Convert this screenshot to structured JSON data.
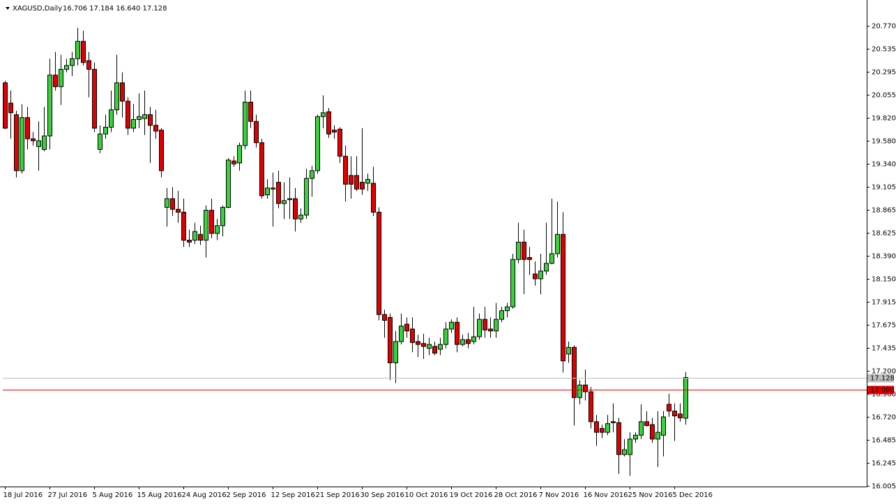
{
  "chart_data": {
    "type": "candlestick",
    "title": "XAGUSD,Daily",
    "ohlc_header": "16.706 17.184 16.640 17.128",
    "up_color": "#3ad13a",
    "down_color": "#e00000",
    "categories": [
      "18 Jul 2016",
      null,
      null,
      null,
      null,
      null,
      null,
      null,
      "27 Jul 2016",
      null,
      null,
      null,
      null,
      null,
      null,
      null,
      "5 Aug 2016",
      null,
      null,
      null,
      null,
      null,
      null,
      null,
      "15 Aug 2016",
      null,
      null,
      null,
      null,
      null,
      null,
      null,
      "24 Aug 2016",
      null,
      null,
      null,
      null,
      null,
      null,
      null,
      "2 Sep 2016",
      null,
      null,
      null,
      null,
      null,
      null,
      null,
      "12 Sep 2016",
      null,
      null,
      null,
      null,
      null,
      null,
      null,
      "21 Sep 2016",
      null,
      null,
      null,
      null,
      null,
      null,
      null,
      "30 Sep 2016",
      null,
      null,
      null,
      null,
      null,
      null,
      null,
      "10 Oct 2016",
      null,
      null,
      null,
      null,
      null,
      null,
      null,
      "19 Oct 2016",
      null,
      null,
      null,
      null,
      null,
      null,
      null,
      "28 Oct 2016",
      null,
      null,
      null,
      null,
      null,
      null,
      null,
      "7 Nov 2016",
      null,
      null,
      null,
      null,
      null,
      null,
      null,
      "16 Nov 2016",
      null,
      null,
      null,
      null,
      null,
      null,
      null,
      "25 Nov 2016",
      null,
      null,
      null,
      null,
      null,
      null,
      null,
      "5 Dec 2016",
      null,
      null
    ],
    "open": [
      20.18,
      19.97,
      19.85,
      19.27,
      19.82,
      19.6,
      19.52,
      19.49,
      19.63,
      20.26,
      20.14,
      20.32,
      20.36,
      20.43,
      20.61,
      20.41,
      20.32,
      19.49,
      19.65,
      19.72,
      19.9,
      20.18,
      19.99,
      19.71,
      19.8,
      19.81,
      19.85,
      19.74,
      19.69,
      18.89,
      18.98,
      18.87,
      18.84,
      18.55,
      18.55,
      18.61,
      18.55,
      18.86,
      18.62,
      18.7,
      18.89,
      19.37,
      19.35,
      19.53,
      19.98,
      19.78,
      19.56,
      19.02,
      19.09,
      19.15,
      18.93,
      18.97,
      18.98,
      18.77,
      18.81,
      19.19,
      19.27,
      19.83,
      19.88,
      19.69,
      19.7,
      19.42,
      19.22,
      19.22,
      19.15,
      19.14,
      19.14,
      18.84,
      17.78,
      17.75,
      17.28,
      17.5,
      17.68,
      17.63,
      17.5,
      17.48,
      17.43,
      17.45,
      17.42,
      17.47,
      17.63,
      17.7,
      17.47,
      17.52,
      17.5,
      17.55,
      17.73,
      17.63,
      17.61,
      17.73,
      17.82,
      17.86,
      18.35,
      18.53,
      18.37,
      18.2,
      18.15,
      18.23,
      18.31,
      18.41,
      18.61,
      17.37,
      17.44,
      16.92,
      17.05,
      16.98,
      16.67,
      16.6,
      16.56,
      16.67,
      16.66,
      16.33,
      16.33,
      16.49,
      16.53,
      16.67,
      16.64,
      16.49,
      16.53,
      16.85,
      16.78,
      16.75,
      16.706
    ],
    "high": [
      20.2,
      20.1,
      19.89,
      19.96,
      19.93,
      19.67,
      19.78,
      19.93,
      20.43,
      20.5,
      20.47,
      20.43,
      20.5,
      20.75,
      20.72,
      20.5,
      20.39,
      19.74,
      19.85,
      20.1,
      20.47,
      20.29,
      20.03,
      19.96,
      20.07,
      20.1,
      19.93,
      19.9,
      19.71,
      19.09,
      19.1,
      19.06,
      18.98,
      18.66,
      18.73,
      18.7,
      18.91,
      18.98,
      18.77,
      18.91,
      19.4,
      19.42,
      19.56,
      20.1,
      20.1,
      19.85,
      19.6,
      19.18,
      19.25,
      19.27,
      19.15,
      19.2,
      19.09,
      18.88,
      19.29,
      19.32,
      19.85,
      20.05,
      19.92,
      19.74,
      19.72,
      19.53,
      19.42,
      19.42,
      19.71,
      19.24,
      19.31,
      18.89,
      17.83,
      17.79,
      17.61,
      17.79,
      17.75,
      17.75,
      17.57,
      17.58,
      17.54,
      17.5,
      17.54,
      17.7,
      17.73,
      17.75,
      17.57,
      17.59,
      17.86,
      17.79,
      17.86,
      17.75,
      17.9,
      17.86,
      17.9,
      18.41,
      18.73,
      18.66,
      18.48,
      18.33,
      18.41,
      18.73,
      18.98,
      18.95,
      18.84,
      17.5,
      17.46,
      17.1,
      17.21,
      17.03,
      16.74,
      16.64,
      16.74,
      16.86,
      16.71,
      16.49,
      16.56,
      16.56,
      16.85,
      16.78,
      16.71,
      16.78,
      16.78,
      16.96,
      16.86,
      16.86,
      17.184
    ],
    "low": [
      19.7,
      19.6,
      19.2,
      19.24,
      19.49,
      19.53,
      19.27,
      19.47,
      19.49,
      20.1,
      19.95,
      20.29,
      20.25,
      20.36,
      20.36,
      20.03,
      19.67,
      19.45,
      19.6,
      19.67,
      19.85,
      19.82,
      19.64,
      19.67,
      19.71,
      19.64,
      19.35,
      19.6,
      19.2,
      18.69,
      18.8,
      18.73,
      18.48,
      18.48,
      18.51,
      18.5,
      18.37,
      18.57,
      18.55,
      18.59,
      18.88,
      19.31,
      19.27,
      19.49,
      19.71,
      19.51,
      18.98,
      18.98,
      18.69,
      18.88,
      18.77,
      18.77,
      18.64,
      18.73,
      18.77,
      19.0,
      19.24,
      19.71,
      19.61,
      19.6,
      19.35,
      18.95,
      18.98,
      19.06,
      19.02,
      19.06,
      18.8,
      17.72,
      17.54,
      17.1,
      17.07,
      17.47,
      17.54,
      17.39,
      17.34,
      17.32,
      17.36,
      17.36,
      17.36,
      17.43,
      17.59,
      17.39,
      17.45,
      17.43,
      17.47,
      17.52,
      17.54,
      17.54,
      17.54,
      17.7,
      17.75,
      17.84,
      18.31,
      17.99,
      18.19,
      18.08,
      17.99,
      18.19,
      18.3,
      18.37,
      17.18,
      17.28,
      16.63,
      16.85,
      16.89,
      16.6,
      16.42,
      16.5,
      16.53,
      16.56,
      16.13,
      16.31,
      16.11,
      16.45,
      16.49,
      16.62,
      16.45,
      16.2,
      16.31,
      16.72,
      16.47,
      16.67,
      16.64
    ],
    "close": [
      19.71,
      19.87,
      19.27,
      19.82,
      19.6,
      19.58,
      19.58,
      19.63,
      20.26,
      20.14,
      20.32,
      20.36,
      20.43,
      20.61,
      20.39,
      20.32,
      19.71,
      19.65,
      19.72,
      19.9,
      20.18,
      19.99,
      19.71,
      19.8,
      19.83,
      19.85,
      19.74,
      19.68,
      19.27,
      18.98,
      18.87,
      18.84,
      18.55,
      18.53,
      18.64,
      18.55,
      18.86,
      18.62,
      18.7,
      18.89,
      19.38,
      19.34,
      19.53,
      19.98,
      19.78,
      19.56,
      19.01,
      19.09,
      19.08,
      18.93,
      18.96,
      18.98,
      18.77,
      18.81,
      19.19,
      19.27,
      19.83,
      19.87,
      19.65,
      19.67,
      19.42,
      19.13,
      19.13,
      19.08,
      19.08,
      19.18,
      18.84,
      17.78,
      17.72,
      17.28,
      17.5,
      17.66,
      17.61,
      17.49,
      17.47,
      17.45,
      17.47,
      17.38,
      17.47,
      17.63,
      17.7,
      17.47,
      17.52,
      17.48,
      17.55,
      17.73,
      17.62,
      17.61,
      17.73,
      17.82,
      17.86,
      18.35,
      18.53,
      18.35,
      18.35,
      18.15,
      18.23,
      18.31,
      18.41,
      18.61,
      17.3,
      17.44,
      16.92,
      17.05,
      16.98,
      16.67,
      16.56,
      16.56,
      16.65,
      16.66,
      16.33,
      16.38,
      16.49,
      16.53,
      16.67,
      16.63,
      16.49,
      16.56,
      16.72,
      16.78,
      16.73,
      16.71,
      17.128
    ],
    "ylim": [
      15.998,
      21.009
    ],
    "yticks": [
      {
        "value": 20.77,
        "label": "20.770"
      },
      {
        "value": 20.535,
        "label": "20.535"
      },
      {
        "value": 20.295,
        "label": "20.295"
      },
      {
        "value": 20.055,
        "label": "20.055"
      },
      {
        "value": 19.82,
        "label": "19.820"
      },
      {
        "value": 19.58,
        "label": "19.580"
      },
      {
        "value": 19.34,
        "label": "19.340"
      },
      {
        "value": 19.105,
        "label": "19.105"
      },
      {
        "value": 18.865,
        "label": "18.865"
      },
      {
        "value": 18.625,
        "label": "18.625"
      },
      {
        "value": 18.39,
        "label": "18.390"
      },
      {
        "value": 18.15,
        "label": "18.150"
      },
      {
        "value": 17.915,
        "label": "17.915"
      },
      {
        "value": 17.675,
        "label": "17.675"
      },
      {
        "value": 17.435,
        "label": "17.435"
      },
      {
        "value": 17.2,
        "label": "17.200"
      },
      {
        "value": 16.96,
        "label": "16.960"
      },
      {
        "value": 16.72,
        "label": "16.720"
      },
      {
        "value": 16.485,
        "label": "16.485"
      },
      {
        "value": 16.245,
        "label": "16.245"
      },
      {
        "value": 16.005,
        "label": "16.005"
      }
    ],
    "price_lines": [
      {
        "value": 17.128,
        "label": "17.128",
        "color": "#c0c0c0",
        "text_color": "#000000"
      },
      {
        "value": 17,
        "label": "17.000",
        "color": "#e00000",
        "text_color": "#ffffff"
      }
    ]
  }
}
